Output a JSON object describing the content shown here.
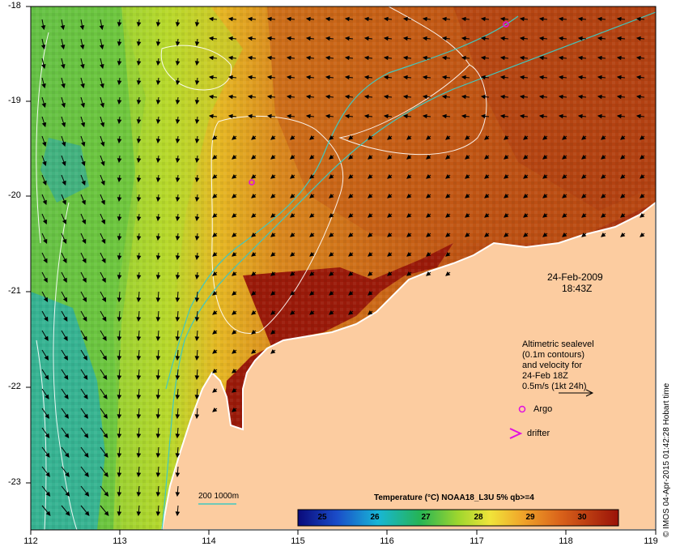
{
  "map": {
    "date": "24-Feb-2009",
    "time": "18:43Z",
    "lat_labels": [
      "-18",
      "-19",
      "-20",
      "-21",
      "-22",
      "-23"
    ],
    "lon_labels": [
      "112",
      "113",
      "114",
      "115",
      "116",
      "117",
      "118",
      "119"
    ],
    "legend": {
      "line1": "Altimetric sealevel",
      "line2": "(0.1m contours)",
      "line3": "and velocity for",
      "line4": "24-Feb 18Z",
      "line5": "0.5m/s (1kt 24h)",
      "argo": "Argo",
      "drifter": "drifter"
    },
    "isobath_label": "200  1000m",
    "colorbar": {
      "title": "Temperature (°C) NOAA18_L3U 5% qb>=4",
      "ticks": [
        "25",
        "26",
        "27",
        "28",
        "29",
        "30"
      ]
    },
    "credit": "© IMOS 04-Apr-2015 01:42:28 Hobart time",
    "colors": {
      "land": "#fccca0",
      "warm": "#9a1a0a",
      "mid": "#d2761e",
      "cool": "#5fbf3a",
      "cold": "#1fa5b8",
      "isobath": "#40c8c0",
      "argo": "#e010e0"
    }
  }
}
